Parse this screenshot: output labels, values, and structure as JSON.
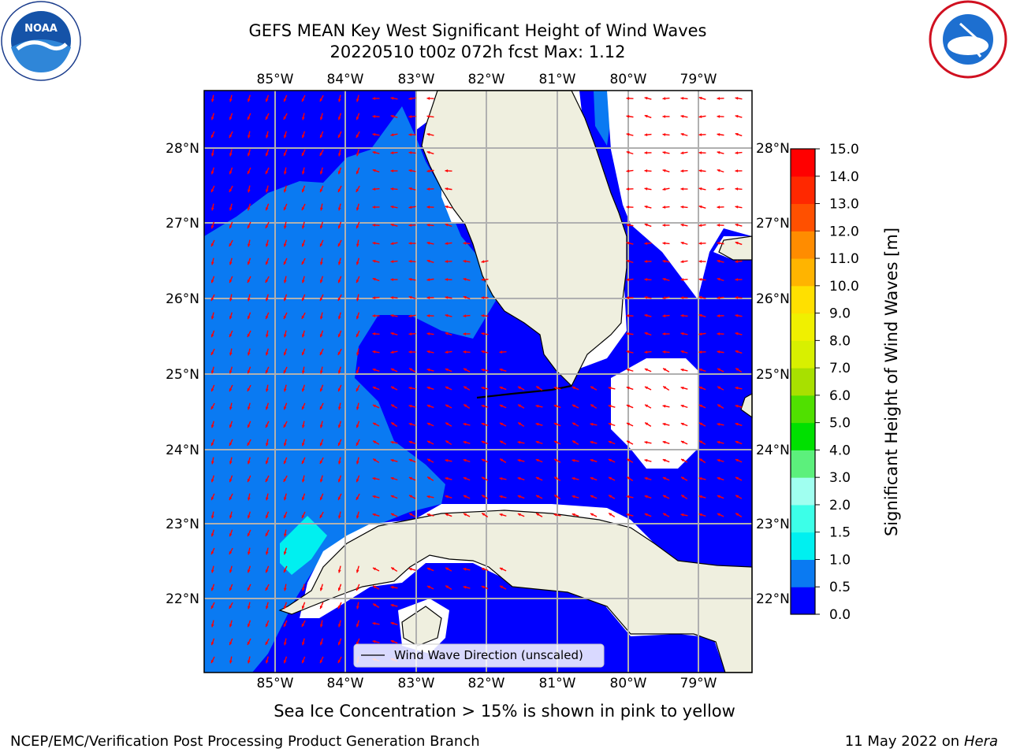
{
  "title_line1": "GEFS MEAN Key West Significant Height of Wind Waves",
  "title_line2": "20220510 t00z 072h fcst   Max: 1.12",
  "x_tick_labels": [
    "85°W",
    "84°W",
    "83°W",
    "82°W",
    "81°W",
    "80°W",
    "79°W"
  ],
  "y_tick_labels": [
    "28°N",
    "27°N",
    "26°N",
    "25°N",
    "24°N",
    "23°N",
    "22°N"
  ],
  "legend_label": "Wind Wave Direction (unscaled)",
  "colorbar": {
    "label": "Significant Height of Wind Waves [m]",
    "tick_labels": [
      "0.0",
      "0.5",
      "1.0",
      "1.5",
      "2.0",
      "3.0",
      "4.0",
      "5.0",
      "6.0",
      "7.0",
      "8.0",
      "9.0",
      "10.0",
      "11.0",
      "12.0",
      "13.0",
      "14.0",
      "15.0"
    ],
    "colors": [
      "#0000ff",
      "#0a7af2",
      "#00f0f0",
      "#3cffe8",
      "#a0fff0",
      "#5cf07c",
      "#00e000",
      "#50e000",
      "#a8e000",
      "#d8f000",
      "#f0f000",
      "#ffe000",
      "#ffb400",
      "#ff8c00",
      "#ff5000",
      "#ff2800",
      "#ff0000"
    ]
  },
  "ice_note": "Sea Ice Concentration > 15% is shown in pink to yellow",
  "footer_left": "NCEP/EMC/Verification Post Processing Product Generation Branch",
  "footer_right_date": "11 May 2022 on",
  "footer_right_machine": "Hera",
  "colors": {
    "land": "#efefdf",
    "wave_low": "#0000ff",
    "wave_mid": "#0a7af2",
    "wave_high": "#00f0f0",
    "arrow": "#ff0000",
    "grid": "#b0b0b0"
  }
}
